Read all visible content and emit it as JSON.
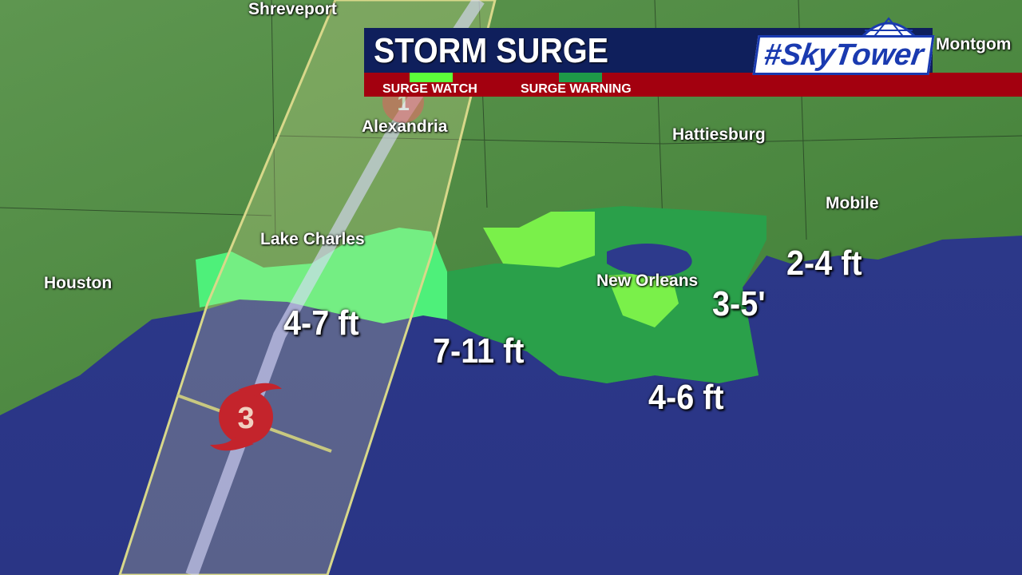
{
  "header": {
    "title": "STORM SURGE",
    "legend": [
      {
        "label": "SURGE WATCH",
        "color": "#5cff3a"
      },
      {
        "label": "SURGE WARNING",
        "color": "#1e9a48"
      }
    ],
    "logo": "#SkyTower"
  },
  "cities": {
    "shreveport": "Shreveport",
    "alexandria": "Alexandria",
    "hattiesburg": "Hattiesburg",
    "mobile": "Mobile",
    "lake_charles": "Lake Charles",
    "houston": "Houston",
    "new_orleans": "New Orleans",
    "montgomery": "Montgom"
  },
  "surge_labels": {
    "sw_la": "4-7 ft",
    "central": "7-11 ft",
    "se_la": "4-6 ft",
    "lake": "3-5'",
    "ms_al": "2-4 ft"
  },
  "storm": {
    "points": [
      {
        "category": "3"
      },
      {
        "category": "1"
      }
    ]
  },
  "colors": {
    "land": "#4f8a3c",
    "water": "#2a3585",
    "watch": "#5cff3a",
    "warning": "#1e9a48"
  }
}
